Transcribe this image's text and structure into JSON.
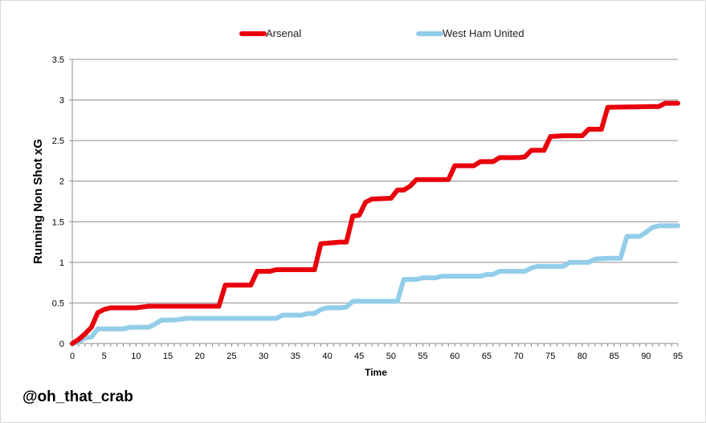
{
  "credit": "@oh_that_crab",
  "chart_data": {
    "type": "line",
    "title": "",
    "xlabel": "Time",
    "ylabel": "Running Non Shot xG",
    "xlim": [
      0,
      95
    ],
    "ylim": [
      0,
      3.5
    ],
    "xticks": [
      "0",
      "5",
      "10",
      "15",
      "20",
      "25",
      "30",
      "35",
      "40",
      "45",
      "50",
      "55",
      "60",
      "65",
      "70",
      "75",
      "80",
      "85",
      "90",
      "95"
    ],
    "yticks": [
      "0",
      "0.5",
      "1",
      "1.5",
      "2",
      "2.5",
      "3",
      "3.5"
    ],
    "grid": "horizontal",
    "legend_position": "top",
    "series": [
      {
        "name": "Arsenal",
        "color": "#e8000b",
        "points": [
          [
            0,
            0
          ],
          [
            1,
            0.05
          ],
          [
            2,
            0.12
          ],
          [
            3,
            0.2
          ],
          [
            4,
            0.38
          ],
          [
            5,
            0.42
          ],
          [
            6,
            0.44
          ],
          [
            10,
            0.44
          ],
          [
            11,
            0.45
          ],
          [
            12,
            0.46
          ],
          [
            23,
            0.46
          ],
          [
            24,
            0.72
          ],
          [
            28,
            0.72
          ],
          [
            29,
            0.89
          ],
          [
            31,
            0.89
          ],
          [
            32,
            0.91
          ],
          [
            38,
            0.91
          ],
          [
            39,
            1.23
          ],
          [
            42,
            1.25
          ],
          [
            43,
            1.25
          ],
          [
            44,
            1.57
          ],
          [
            45,
            1.58
          ],
          [
            46,
            1.74
          ],
          [
            47,
            1.78
          ],
          [
            50,
            1.79
          ],
          [
            51,
            1.89
          ],
          [
            52,
            1.89
          ],
          [
            53,
            1.94
          ],
          [
            54,
            2.02
          ],
          [
            59,
            2.02
          ],
          [
            60,
            2.19
          ],
          [
            63,
            2.19
          ],
          [
            64,
            2.24
          ],
          [
            66,
            2.24
          ],
          [
            67,
            2.29
          ],
          [
            70,
            2.29
          ],
          [
            71,
            2.3
          ],
          [
            72,
            2.38
          ],
          [
            74,
            2.38
          ],
          [
            75,
            2.55
          ],
          [
            77,
            2.56
          ],
          [
            80,
            2.56
          ],
          [
            81,
            2.64
          ],
          [
            83,
            2.64
          ],
          [
            84,
            2.91
          ],
          [
            91,
            2.92
          ],
          [
            92,
            2.92
          ],
          [
            93,
            2.96
          ],
          [
            95,
            2.96
          ]
        ]
      },
      {
        "name": "West Ham United",
        "color": "#92cde9",
        "points": [
          [
            0,
            0
          ],
          [
            1,
            0.02
          ],
          [
            2,
            0.07
          ],
          [
            3,
            0.08
          ],
          [
            4,
            0.18
          ],
          [
            8,
            0.18
          ],
          [
            9,
            0.2
          ],
          [
            12,
            0.2
          ],
          [
            13,
            0.24
          ],
          [
            14,
            0.29
          ],
          [
            16,
            0.29
          ],
          [
            17,
            0.3
          ],
          [
            18,
            0.31
          ],
          [
            31,
            0.31
          ],
          [
            32,
            0.31
          ],
          [
            33,
            0.35
          ],
          [
            36,
            0.35
          ],
          [
            37,
            0.37
          ],
          [
            38,
            0.37
          ],
          [
            39,
            0.42
          ],
          [
            40,
            0.44
          ],
          [
            42,
            0.44
          ],
          [
            43,
            0.45
          ],
          [
            44,
            0.52
          ],
          [
            51,
            0.52
          ],
          [
            52,
            0.79
          ],
          [
            54,
            0.79
          ],
          [
            55,
            0.81
          ],
          [
            57,
            0.81
          ],
          [
            58,
            0.83
          ],
          [
            64,
            0.83
          ],
          [
            65,
            0.85
          ],
          [
            66,
            0.85
          ],
          [
            67,
            0.89
          ],
          [
            71,
            0.89
          ],
          [
            72,
            0.93
          ],
          [
            73,
            0.95
          ],
          [
            77,
            0.95
          ],
          [
            78,
            1.0
          ],
          [
            81,
            1.0
          ],
          [
            82,
            1.04
          ],
          [
            84,
            1.05
          ],
          [
            86,
            1.05
          ],
          [
            87,
            1.32
          ],
          [
            89,
            1.32
          ],
          [
            90,
            1.37
          ],
          [
            91,
            1.43
          ],
          [
            92,
            1.45
          ],
          [
            95,
            1.45
          ]
        ]
      }
    ]
  }
}
